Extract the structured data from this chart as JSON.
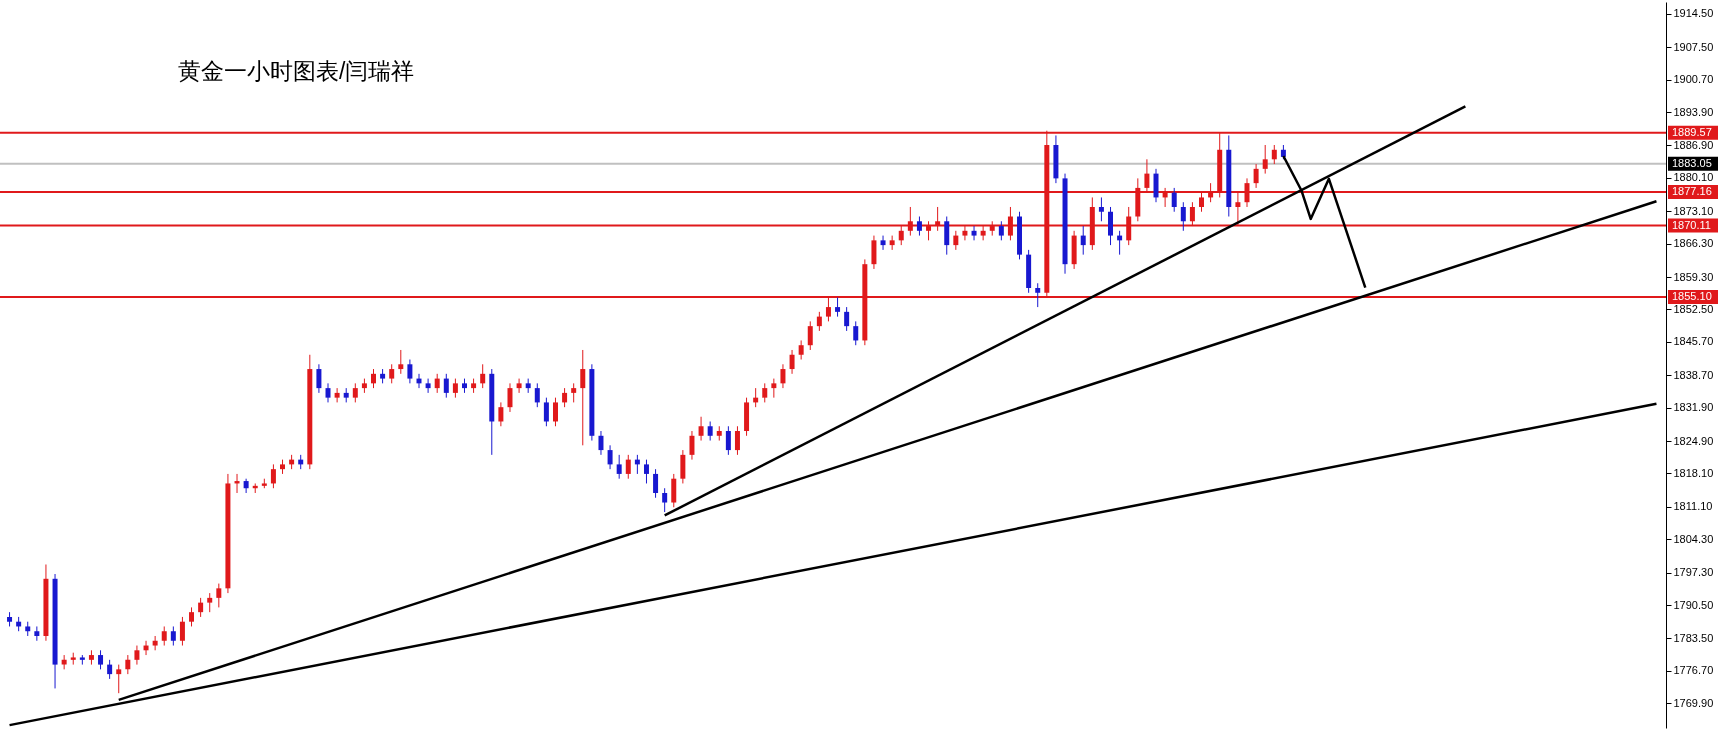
{
  "chart_data": {
    "type": "candlestick",
    "title": "黄金一小时图表/闫瑞祥",
    "categories": [
      null,
      null,
      null,
      null,
      null,
      null,
      null,
      null,
      null,
      null,
      null,
      null,
      null,
      null,
      null,
      null,
      null,
      null,
      null,
      null,
      null,
      null,
      null,
      null,
      null,
      null,
      null,
      null,
      null,
      null,
      null,
      null,
      null,
      null,
      null,
      null,
      null,
      null,
      null,
      null,
      null,
      null,
      null,
      null,
      null,
      null,
      null,
      null,
      null,
      null,
      null,
      null,
      null,
      null,
      null,
      null,
      null,
      null,
      null,
      null,
      null,
      null,
      null,
      null,
      null,
      null,
      null,
      null,
      null,
      null,
      null,
      null,
      null,
      null,
      null,
      null,
      null,
      null,
      null,
      null,
      null,
      null,
      null,
      null,
      null,
      null,
      null,
      null,
      null,
      null,
      null,
      null,
      null,
      null,
      null,
      null,
      null,
      null,
      null,
      null,
      null,
      null,
      null,
      null,
      null,
      null,
      null,
      null,
      null,
      null,
      null,
      null,
      null,
      null,
      null,
      null,
      null,
      null,
      null,
      null,
      null,
      null,
      null,
      null,
      null,
      null,
      null,
      null,
      null,
      null,
      null,
      null,
      null,
      null,
      null,
      null,
      null,
      null,
      null,
      null,
      null,
      null,
      null,
      null,
      null,
      null,
      null,
      null,
      null,
      null,
      null,
      null,
      null,
      null,
      null,
      null,
      null,
      null,
      null,
      null,
      null,
      null,
      null,
      null,
      null,
      null,
      null,
      null,
      null,
      null,
      null,
      null,
      null,
      null,
      null,
      null,
      null,
      null,
      null,
      null,
      null,
      null
    ],
    "ohlc": [
      [
        1788,
        1789,
        1786,
        1787
      ],
      [
        1787,
        1788,
        1785,
        1786
      ],
      [
        1786,
        1787,
        1784,
        1785
      ],
      [
        1785,
        1786,
        1783,
        1784
      ],
      [
        1784,
        1799,
        1783,
        1796
      ],
      [
        1796,
        1797,
        1773,
        1778
      ],
      [
        1778,
        1780,
        1777,
        1779
      ],
      [
        1779,
        1780.5,
        1778,
        1779.5
      ],
      [
        1779.5,
        1780,
        1778,
        1779
      ],
      [
        1779,
        1781,
        1778,
        1780
      ],
      [
        1780,
        1781,
        1777,
        1778
      ],
      [
        1778,
        1779,
        1775,
        1776
      ],
      [
        1776,
        1778,
        1772,
        1777
      ],
      [
        1777,
        1780,
        1776,
        1779
      ],
      [
        1779,
        1782,
        1778,
        1781
      ],
      [
        1781,
        1783,
        1780,
        1782
      ],
      [
        1782,
        1784,
        1781,
        1783
      ],
      [
        1783,
        1786,
        1782,
        1785
      ],
      [
        1785,
        1786,
        1782,
        1783
      ],
      [
        1783,
        1788,
        1782,
        1787
      ],
      [
        1787,
        1790,
        1786,
        1789
      ],
      [
        1789,
        1792,
        1788,
        1791
      ],
      [
        1791,
        1793,
        1789,
        1792
      ],
      [
        1792,
        1795,
        1790,
        1794
      ],
      [
        1794,
        1818,
        1793,
        1816
      ],
      [
        1816,
        1818,
        1814,
        1816.5
      ],
      [
        1816.5,
        1817,
        1814,
        1815
      ],
      [
        1815,
        1816,
        1814,
        1815.5
      ],
      [
        1815.5,
        1817,
        1815,
        1816
      ],
      [
        1816,
        1820,
        1815,
        1819
      ],
      [
        1819,
        1821,
        1818,
        1820
      ],
      [
        1820,
        1822,
        1819,
        1821
      ],
      [
        1821,
        1822,
        1819,
        1820
      ],
      [
        1820,
        1843,
        1819,
        1840
      ],
      [
        1840,
        1841,
        1835,
        1836
      ],
      [
        1836,
        1837,
        1833,
        1834
      ],
      [
        1834,
        1836,
        1833,
        1835
      ],
      [
        1835,
        1836,
        1833,
        1834
      ],
      [
        1834,
        1837,
        1833,
        1836
      ],
      [
        1836,
        1838,
        1835,
        1837
      ],
      [
        1837,
        1840,
        1836,
        1839
      ],
      [
        1839,
        1840,
        1837,
        1838
      ],
      [
        1838,
        1841,
        1837,
        1840
      ],
      [
        1840,
        1844,
        1839,
        1841
      ],
      [
        1841,
        1842,
        1837,
        1838
      ],
      [
        1838,
        1839,
        1836,
        1837
      ],
      [
        1837,
        1838,
        1835,
        1836
      ],
      [
        1836,
        1839,
        1835,
        1838
      ],
      [
        1838,
        1839,
        1834,
        1835
      ],
      [
        1835,
        1838,
        1834,
        1837
      ],
      [
        1837,
        1838,
        1835,
        1836
      ],
      [
        1836,
        1838,
        1835,
        1837
      ],
      [
        1837,
        1841,
        1836,
        1839
      ],
      [
        1839,
        1840,
        1822,
        1829
      ],
      [
        1829,
        1833,
        1828,
        1832
      ],
      [
        1832,
        1837,
        1831,
        1836
      ],
      [
        1836,
        1838,
        1835,
        1837
      ],
      [
        1837,
        1838,
        1835,
        1836
      ],
      [
        1836,
        1837,
        1832,
        1833
      ],
      [
        1833,
        1834,
        1828,
        1829
      ],
      [
        1829,
        1834,
        1828,
        1833
      ],
      [
        1833,
        1836,
        1832,
        1835
      ],
      [
        1835,
        1837,
        1833,
        1836
      ],
      [
        1836,
        1844,
        1824,
        1840
      ],
      [
        1840,
        1841,
        1825,
        1826
      ],
      [
        1826,
        1827,
        1822,
        1823
      ],
      [
        1823,
        1824,
        1819,
        1820
      ],
      [
        1820,
        1822,
        1817,
        1818
      ],
      [
        1818,
        1822,
        1817,
        1821
      ],
      [
        1821,
        1822,
        1818,
        1820
      ],
      [
        1820,
        1821,
        1816,
        1818
      ],
      [
        1818,
        1819,
        1813,
        1814
      ],
      [
        1814,
        1815,
        1810,
        1812
      ],
      [
        1812,
        1818,
        1811,
        1817
      ],
      [
        1817,
        1823,
        1816,
        1822
      ],
      [
        1822,
        1827,
        1821,
        1826
      ],
      [
        1826,
        1830,
        1825,
        1828
      ],
      [
        1828,
        1829,
        1825,
        1826
      ],
      [
        1826,
        1828,
        1825,
        1827
      ],
      [
        1827,
        1828,
        1822,
        1823
      ],
      [
        1823,
        1828,
        1822,
        1827
      ],
      [
        1827,
        1834,
        1826,
        1833
      ],
      [
        1833,
        1836,
        1832,
        1834
      ],
      [
        1834,
        1837,
        1833,
        1836
      ],
      [
        1836,
        1838,
        1834,
        1837
      ],
      [
        1837,
        1841,
        1836,
        1840
      ],
      [
        1840,
        1844,
        1839,
        1843
      ],
      [
        1843,
        1846,
        1842,
        1845
      ],
      [
        1845,
        1850,
        1844,
        1849
      ],
      [
        1849,
        1852,
        1848,
        1851
      ],
      [
        1851,
        1855,
        1850,
        1853
      ],
      [
        1853,
        1855,
        1851,
        1852
      ],
      [
        1852,
        1853,
        1848,
        1849
      ],
      [
        1849,
        1850,
        1845,
        1846
      ],
      [
        1846,
        1863,
        1845,
        1862
      ],
      [
        1862,
        1868,
        1861,
        1867
      ],
      [
        1867,
        1868,
        1865,
        1866
      ],
      [
        1866,
        1868,
        1865,
        1867
      ],
      [
        1867,
        1870,
        1866,
        1869
      ],
      [
        1869,
        1874,
        1868,
        1871
      ],
      [
        1871,
        1872,
        1868,
        1869
      ],
      [
        1869,
        1871,
        1867,
        1870
      ],
      [
        1870,
        1874,
        1869,
        1871
      ],
      [
        1871,
        1872,
        1864,
        1866
      ],
      [
        1866,
        1869,
        1865,
        1868
      ],
      [
        1868,
        1870,
        1867,
        1869
      ],
      [
        1869,
        1870,
        1867,
        1868
      ],
      [
        1868,
        1870,
        1867,
        1869
      ],
      [
        1869,
        1871,
        1868,
        1870
      ],
      [
        1870,
        1871,
        1867,
        1868
      ],
      [
        1868,
        1874,
        1867,
        1872
      ],
      [
        1872,
        1873,
        1863,
        1864
      ],
      [
        1864,
        1865,
        1856,
        1857
      ],
      [
        1857,
        1858,
        1853,
        1856
      ],
      [
        1856,
        1890,
        1855,
        1887
      ],
      [
        1887,
        1889,
        1879,
        1880
      ],
      [
        1880,
        1881,
        1860,
        1862
      ],
      [
        1862,
        1869,
        1861,
        1868
      ],
      [
        1868,
        1870,
        1864,
        1866
      ],
      [
        1866,
        1876,
        1865,
        1874
      ],
      [
        1874,
        1876,
        1871,
        1873
      ],
      [
        1873,
        1874,
        1866,
        1868
      ],
      [
        1868,
        1869,
        1864,
        1867
      ],
      [
        1867,
        1874,
        1866,
        1872
      ],
      [
        1872,
        1880,
        1871,
        1878
      ],
      [
        1878,
        1884,
        1877,
        1881
      ],
      [
        1881,
        1882,
        1875,
        1876
      ],
      [
        1876,
        1878,
        1874,
        1877
      ],
      [
        1877,
        1878,
        1873,
        1874
      ],
      [
        1874,
        1875,
        1869,
        1871
      ],
      [
        1871,
        1875,
        1870,
        1874
      ],
      [
        1874,
        1877,
        1873,
        1876
      ],
      [
        1876,
        1879,
        1875,
        1877
      ],
      [
        1877,
        1889.5,
        1876,
        1886
      ],
      [
        1886,
        1889,
        1872,
        1874
      ],
      [
        1874,
        1877,
        1870,
        1875
      ],
      [
        1875,
        1880,
        1874,
        1879
      ],
      [
        1879,
        1883,
        1878,
        1882
      ],
      [
        1882,
        1887,
        1881,
        1884
      ],
      [
        1884,
        1887,
        1883,
        1886
      ],
      [
        1886,
        1887,
        1884,
        1884.5
      ],
      null,
      null,
      null,
      null,
      null,
      null,
      null,
      null,
      null,
      null,
      null,
      null,
      null,
      null,
      null,
      null,
      null,
      null,
      null,
      null,
      null,
      null,
      null,
      null,
      null,
      null,
      null,
      null,
      null,
      null,
      null,
      null,
      null,
      null,
      null,
      null,
      null,
      null,
      null,
      null,
      null
    ],
    "colors": [
      "#1818d0",
      "#1818d0",
      "#1818d0",
      "#1818d0",
      "#e0191b",
      "#1818d0",
      "#e0191b",
      "#e0191b",
      "#1818d0",
      "#e0191b",
      "#1818d0",
      "#1818d0",
      "#e0191b",
      "#e0191b",
      "#e0191b",
      "#e0191b",
      "#e0191b",
      "#e0191b",
      "#1818d0",
      "#e0191b",
      "#e0191b",
      "#e0191b",
      "#e0191b",
      "#e0191b",
      "#e0191b",
      "#e0191b",
      "#1818d0",
      "#e0191b",
      "#e0191b",
      "#e0191b",
      "#e0191b",
      "#e0191b",
      "#1818d0",
      "#e0191b",
      "#1818d0",
      "#1818d0",
      "#e0191b",
      "#1818d0",
      "#e0191b",
      "#e0191b",
      "#e0191b",
      "#1818d0",
      "#e0191b",
      "#e0191b",
      "#1818d0",
      "#1818d0",
      "#1818d0",
      "#e0191b",
      "#1818d0",
      "#e0191b",
      "#1818d0",
      "#e0191b",
      "#e0191b",
      "#1818d0",
      "#e0191b",
      "#e0191b",
      "#e0191b",
      "#1818d0",
      "#1818d0",
      "#1818d0",
      "#e0191b",
      "#e0191b",
      "#e0191b",
      "#e0191b",
      "#1818d0",
      "#1818d0",
      "#1818d0",
      "#1818d0",
      "#e0191b",
      "#1818d0",
      "#1818d0",
      "#1818d0",
      "#1818d0",
      "#e0191b",
      "#e0191b",
      "#e0191b",
      "#e0191b",
      "#1818d0",
      "#e0191b",
      "#1818d0",
      "#e0191b",
      "#e0191b",
      "#e0191b",
      "#e0191b",
      "#e0191b",
      "#e0191b",
      "#e0191b",
      "#e0191b",
      "#e0191b",
      "#e0191b",
      "#e0191b",
      "#1818d0",
      "#1818d0",
      "#1818d0",
      "#e0191b",
      "#e0191b",
      "#1818d0",
      "#e0191b",
      "#e0191b",
      "#e0191b",
      "#1818d0",
      "#e0191b",
      "#e0191b",
      "#1818d0",
      "#e0191b",
      "#e0191b",
      "#1818d0",
      "#e0191b",
      "#e0191b",
      "#1818d0",
      "#e0191b",
      "#1818d0",
      "#1818d0",
      "#1818d0",
      "#e0191b",
      "#1818d0",
      "#1818d0",
      "#e0191b",
      "#1818d0",
      "#e0191b",
      "#1818d0",
      "#1818d0",
      "#1818d0",
      "#e0191b",
      "#e0191b",
      "#e0191b",
      "#1818d0",
      "#e0191b",
      "#1818d0",
      "#1818d0",
      "#e0191b",
      "#e0191b",
      "#e0191b",
      "#e0191b",
      "#1818d0",
      "#e0191b",
      "#e0191b",
      "#e0191b",
      "#e0191b",
      "#e0191b",
      "#1818d0",
      null,
      null,
      null,
      null,
      null,
      null,
      null,
      null,
      null,
      null,
      null,
      null,
      null,
      null,
      null,
      null,
      null,
      null,
      null,
      null,
      null,
      null,
      null,
      null,
      null,
      null,
      null,
      null,
      null,
      null,
      null,
      null,
      null,
      null,
      null,
      null,
      null,
      null,
      null,
      null,
      null
    ],
    "series": [
      {
        "type": "line",
        "color": "#000000",
        "values": [
          1765.3,
          null,
          null,
          null,
          null,
          null,
          null,
          null,
          null,
          null,
          null,
          null,
          null,
          null,
          null,
          null,
          null,
          null,
          null,
          null,
          null,
          null,
          null,
          null,
          null,
          null,
          null,
          null,
          null,
          null,
          null,
          null,
          null,
          null,
          null,
          null,
          null,
          null,
          null,
          null,
          null,
          null,
          null,
          null,
          null,
          null,
          null,
          null,
          null,
          null,
          null,
          null,
          null,
          null,
          null,
          null,
          null,
          null,
          null,
          null,
          null,
          null,
          null,
          null,
          null,
          null,
          null,
          null,
          null,
          null,
          null,
          null,
          null,
          null,
          null,
          null,
          null,
          null,
          null,
          null,
          null,
          null,
          null,
          null,
          null,
          null,
          null,
          null,
          null,
          null,
          null,
          null,
          null,
          null,
          null,
          null,
          null,
          null,
          null,
          null,
          null,
          null,
          null,
          null,
          null,
          null,
          null,
          null,
          null,
          null,
          null,
          null,
          null,
          null,
          null,
          null,
          null,
          null,
          null,
          null,
          null,
          null,
          null,
          null,
          null,
          null,
          null,
          null,
          null,
          null,
          null,
          null,
          null,
          null,
          null,
          null,
          null,
          null,
          null,
          null,
          null,
          null,
          null,
          null,
          null,
          null,
          null,
          null,
          null,
          null,
          null,
          null,
          null,
          null,
          null,
          null,
          null,
          null,
          null,
          null,
          null,
          null,
          null,
          null,
          null,
          null,
          null,
          null,
          null,
          null,
          null,
          null,
          null,
          null,
          null,
          null,
          null,
          null,
          null,
          null,
          null,
          1832.7
        ]
      },
      {
        "type": "line",
        "color": "#000000",
        "values": [
          null,
          null,
          null,
          null,
          null,
          null,
          null,
          null,
          null,
          null,
          null,
          null,
          1770.6,
          null,
          null,
          null,
          null,
          null,
          null,
          null,
          null,
          null,
          null,
          null,
          null,
          null,
          null,
          null,
          null,
          null,
          null,
          null,
          null,
          null,
          null,
          null,
          null,
          null,
          null,
          null,
          null,
          null,
          null,
          null,
          null,
          null,
          null,
          null,
          null,
          null,
          null,
          null,
          null,
          null,
          null,
          null,
          null,
          null,
          null,
          null,
          null,
          null,
          null,
          null,
          null,
          null,
          null,
          null,
          null,
          null,
          null,
          null,
          null,
          null,
          null,
          null,
          null,
          null,
          null,
          null,
          null,
          null,
          null,
          null,
          null,
          null,
          null,
          null,
          null,
          null,
          null,
          null,
          null,
          null,
          null,
          null,
          null,
          null,
          null,
          null,
          null,
          null,
          null,
          null,
          null,
          null,
          null,
          null,
          null,
          null,
          null,
          null,
          null,
          null,
          null,
          null,
          null,
          null,
          null,
          null,
          null,
          null,
          null,
          null,
          null,
          null,
          null,
          null,
          null,
          null,
          null,
          null,
          null,
          null,
          null,
          null,
          null,
          null,
          null,
          null,
          null,
          null,
          null,
          null,
          null,
          null,
          null,
          null,
          null,
          null,
          null,
          null,
          null,
          null,
          null,
          null,
          null,
          null,
          null,
          null,
          null,
          null,
          null,
          null,
          null,
          null,
          null,
          null,
          null,
          null,
          null,
          null,
          null,
          null,
          null,
          null,
          null,
          null,
          null,
          null,
          null,
          1875.2
        ]
      },
      {
        "type": "line",
        "color": "#000000",
        "values": [
          null,
          null,
          null,
          null,
          null,
          null,
          null,
          null,
          null,
          null,
          null,
          null,
          null,
          null,
          null,
          null,
          null,
          null,
          null,
          null,
          null,
          null,
          null,
          null,
          null,
          null,
          null,
          null,
          null,
          null,
          null,
          null,
          null,
          null,
          null,
          null,
          null,
          null,
          null,
          null,
          null,
          null,
          null,
          null,
          null,
          null,
          null,
          null,
          null,
          null,
          null,
          null,
          null,
          null,
          null,
          null,
          null,
          null,
          null,
          null,
          null,
          null,
          null,
          null,
          null,
          null,
          null,
          null,
          null,
          null,
          null,
          null,
          1809.3,
          null,
          null,
          null,
          null,
          null,
          null,
          null,
          null,
          null,
          null,
          null,
          null,
          null,
          null,
          null,
          null,
          null,
          null,
          null,
          null,
          null,
          null,
          null,
          null,
          null,
          null,
          null,
          null,
          null,
          null,
          null,
          null,
          null,
          null,
          null,
          null,
          null,
          null,
          null,
          null,
          null,
          null,
          null,
          null,
          null,
          null,
          null,
          null,
          null,
          null,
          null,
          null,
          null,
          null,
          null,
          null,
          null,
          null,
          null,
          null,
          null,
          null,
          null,
          null,
          null,
          null,
          null,
          null,
          null,
          null,
          null,
          null,
          null,
          null,
          null,
          null,
          null,
          null,
          null,
          null,
          null,
          null,
          null,
          null,
          null,
          null,
          null,
          1895.1,
          null,
          null,
          null,
          null,
          null,
          null,
          null,
          null,
          null,
          null,
          null,
          null,
          null,
          null,
          null,
          null,
          null,
          null,
          null,
          null,
          null
        ]
      },
      {
        "type": "line",
        "color": "#000000",
        "values": [
          null,
          null,
          null,
          null,
          null,
          null,
          null,
          null,
          null,
          null,
          null,
          null,
          null,
          null,
          null,
          null,
          null,
          null,
          null,
          null,
          null,
          null,
          null,
          null,
          null,
          null,
          null,
          null,
          null,
          null,
          null,
          null,
          null,
          null,
          null,
          null,
          null,
          null,
          null,
          null,
          null,
          null,
          null,
          null,
          null,
          null,
          null,
          null,
          null,
          null,
          null,
          null,
          null,
          null,
          null,
          null,
          null,
          null,
          null,
          null,
          null,
          null,
          null,
          null,
          null,
          null,
          null,
          null,
          null,
          null,
          null,
          null,
          null,
          null,
          null,
          null,
          null,
          null,
          null,
          null,
          null,
          null,
          null,
          null,
          null,
          null,
          null,
          null,
          null,
          null,
          null,
          null,
          null,
          null,
          null,
          null,
          null,
          null,
          null,
          null,
          null,
          null,
          null,
          null,
          null,
          null,
          null,
          null,
          null,
          null,
          null,
          null,
          null,
          null,
          null,
          null,
          null,
          null,
          null,
          null,
          null,
          null,
          null,
          null,
          null,
          null,
          null,
          null,
          null,
          null,
          null,
          null,
          null,
          null,
          null,
          null,
          null,
          null,
          null,
          null,
          1884.7,
          null,
          1877.4,
          1871.5,
          null,
          1879.9,
          null,
          null,
          null,
          1857.1,
          null,
          null,
          null,
          null,
          null,
          null,
          null,
          null,
          null,
          null,
          null,
          null,
          null,
          null,
          null,
          null,
          null,
          null,
          null,
          null,
          null,
          null,
          null,
          null,
          null,
          null,
          null,
          null,
          null,
          null,
          null,
          null
        ]
      }
    ],
    "ref_lines": [
      {
        "axis": "y",
        "value": 1889.57,
        "label": "1889.57",
        "color": "#e0191b"
      },
      {
        "axis": "y",
        "value": 1883.05,
        "label": "1883.05",
        "color": "#c0c0c0"
      },
      {
        "axis": "y",
        "value": 1877.16,
        "label": "1877.16",
        "color": "#e0191b"
      },
      {
        "axis": "y",
        "value": 1870.11,
        "label": "1870.11",
        "color": "#e0191b"
      },
      {
        "axis": "y",
        "value": 1855.1,
        "label": "1855.10",
        "color": "#e0191b"
      }
    ],
    "ylim": [
      1764.7,
      1917.0
    ],
    "yticks": [
      {
        "value": 1914.5,
        "label": "1914.50"
      },
      {
        "value": 1907.5,
        "label": "1907.50"
      },
      {
        "value": 1900.7,
        "label": "1900.70"
      },
      {
        "value": 1893.9,
        "label": "1893.90"
      },
      {
        "value": 1886.9,
        "label": "1886.90"
      },
      {
        "value": 1880.1,
        "label": "1880.10"
      },
      {
        "value": 1873.1,
        "label": "1873.10"
      },
      {
        "value": 1866.3,
        "label": "1866.30"
      },
      {
        "value": 1859.3,
        "label": "1859.30"
      },
      {
        "value": 1852.5,
        "label": "1852.50"
      },
      {
        "value": 1845.7,
        "label": "1845.70"
      },
      {
        "value": 1838.7,
        "label": "1838.70"
      },
      {
        "value": 1831.9,
        "label": "1831.90"
      },
      {
        "value": 1824.9,
        "label": "1824.90"
      },
      {
        "value": 1818.1,
        "label": "1818.10"
      },
      {
        "value": 1811.1,
        "label": "1811.10"
      },
      {
        "value": 1804.3,
        "label": "1804.30"
      },
      {
        "value": 1797.3,
        "label": "1797.30"
      },
      {
        "value": 1790.5,
        "label": "1790.50"
      },
      {
        "value": 1783.5,
        "label": "1783.50"
      },
      {
        "value": 1776.7,
        "label": "1776.70"
      },
      {
        "value": 1769.9,
        "label": "1769.90"
      }
    ],
    "grid": false,
    "tick_labels": "y",
    "line_style": "solid"
  }
}
